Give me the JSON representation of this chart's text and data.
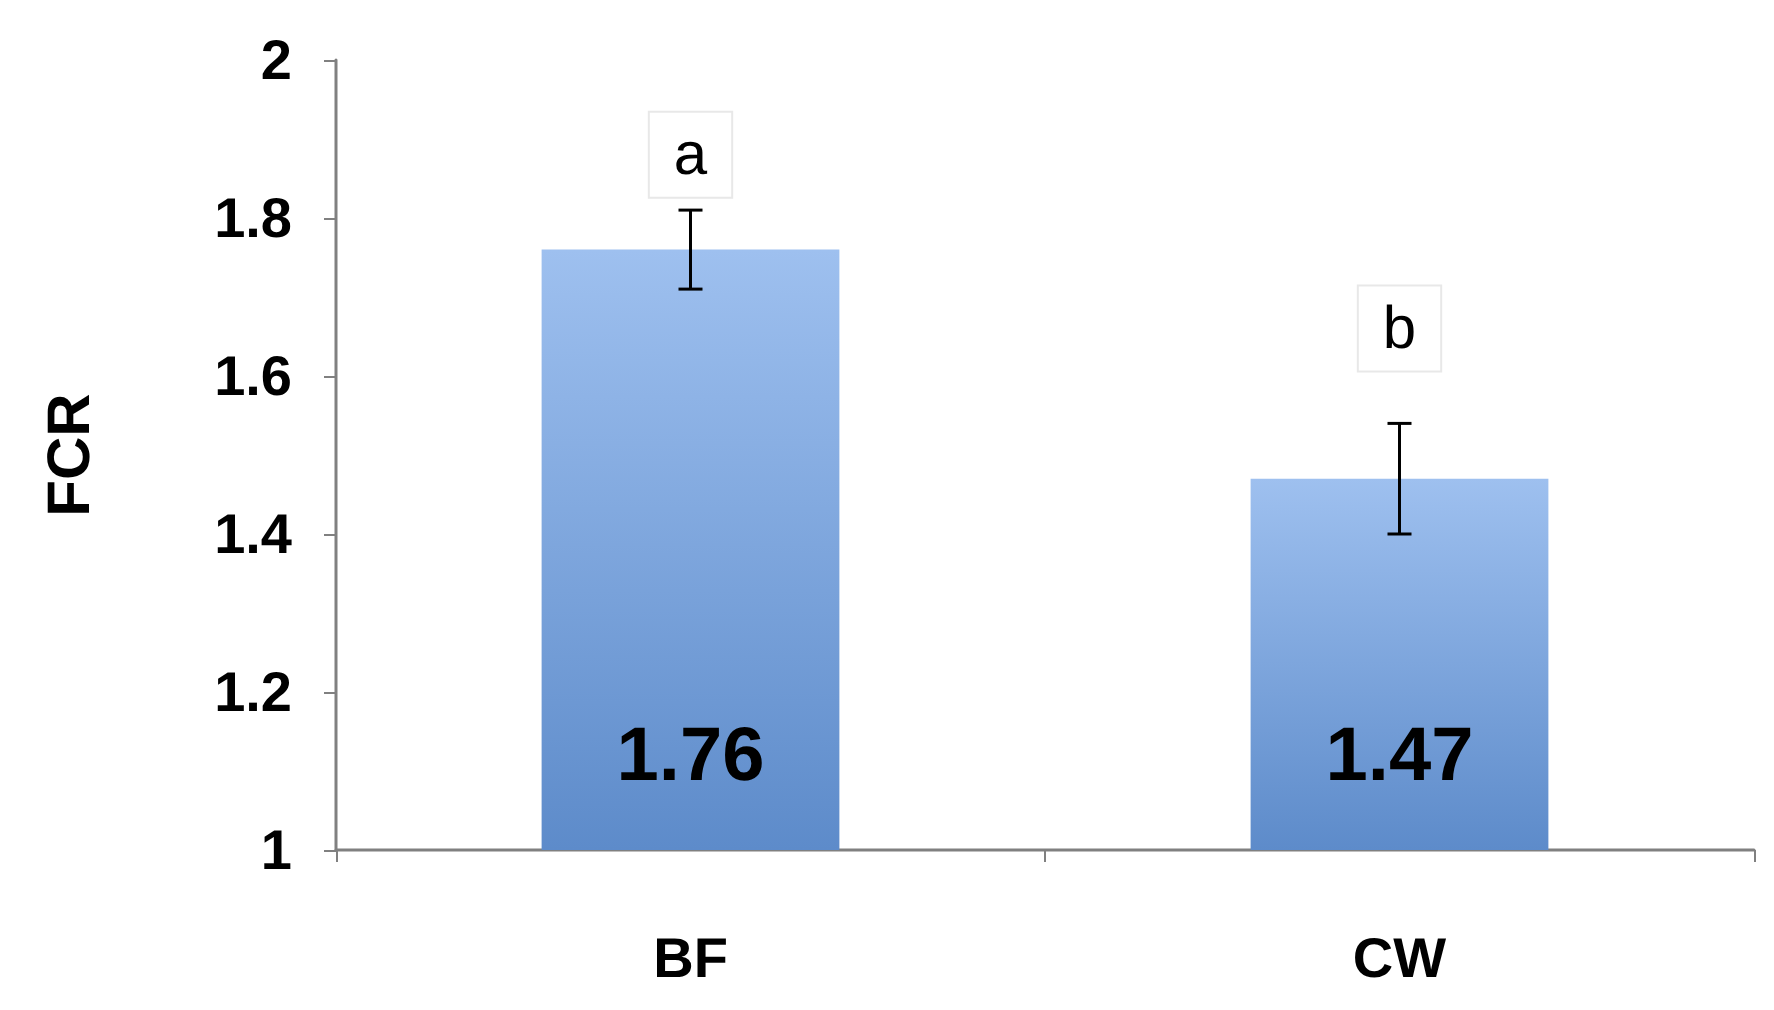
{
  "chart_data": {
    "type": "bar",
    "ylabel": "FCR",
    "categories": [
      "BF",
      "CW"
    ],
    "values": [
      1.76,
      1.47
    ],
    "errors": [
      0.05,
      0.07
    ],
    "color": "#6a9ee6",
    "data_labels": true,
    "ylim": [
      1,
      2
    ],
    "yticks": [
      1,
      1.2,
      1.4,
      1.6,
      1.8,
      2
    ],
    "grid": false,
    "annotations": [
      {
        "text": "a",
        "x": "BF",
        "y": 1.88
      },
      {
        "text": "b",
        "x": "CW",
        "y": 1.66
      }
    ]
  }
}
